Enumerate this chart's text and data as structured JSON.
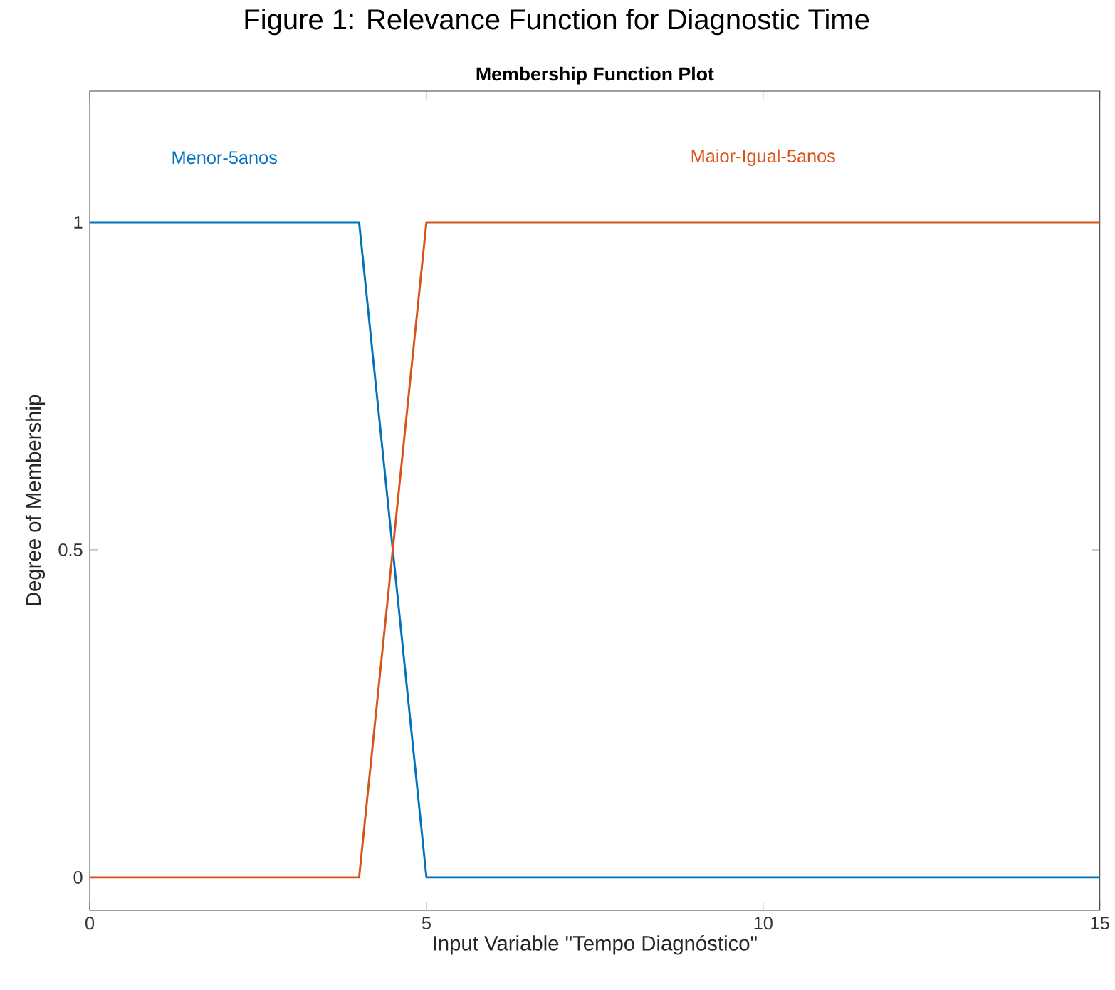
{
  "chart_data": {
    "type": "line",
    "title": "Figure 1: Relevance Function for Diagnostic Time",
    "subtitle": "Membership Function Plot",
    "xlabel": "Input Variable \"Tempo Diagnóstico\"",
    "ylabel": "Degree of Membership",
    "x": [
      0,
      4,
      5,
      15
    ],
    "series": [
      {
        "name": "Menor-5anos",
        "color": "#0072bd",
        "values": [
          1,
          1,
          0,
          0
        ]
      },
      {
        "name": "Maior-Igual-5anos",
        "color": "#d95319",
        "values": [
          0,
          0,
          1,
          1
        ]
      }
    ],
    "xlim": [
      0,
      15
    ],
    "ylim": [
      -0.05,
      1.2
    ],
    "xticks": [
      0,
      5,
      10,
      15
    ],
    "yticks": [
      0,
      0.5,
      1
    ],
    "grid": false,
    "legend": false,
    "marker": "none",
    "line_style": "solid"
  }
}
